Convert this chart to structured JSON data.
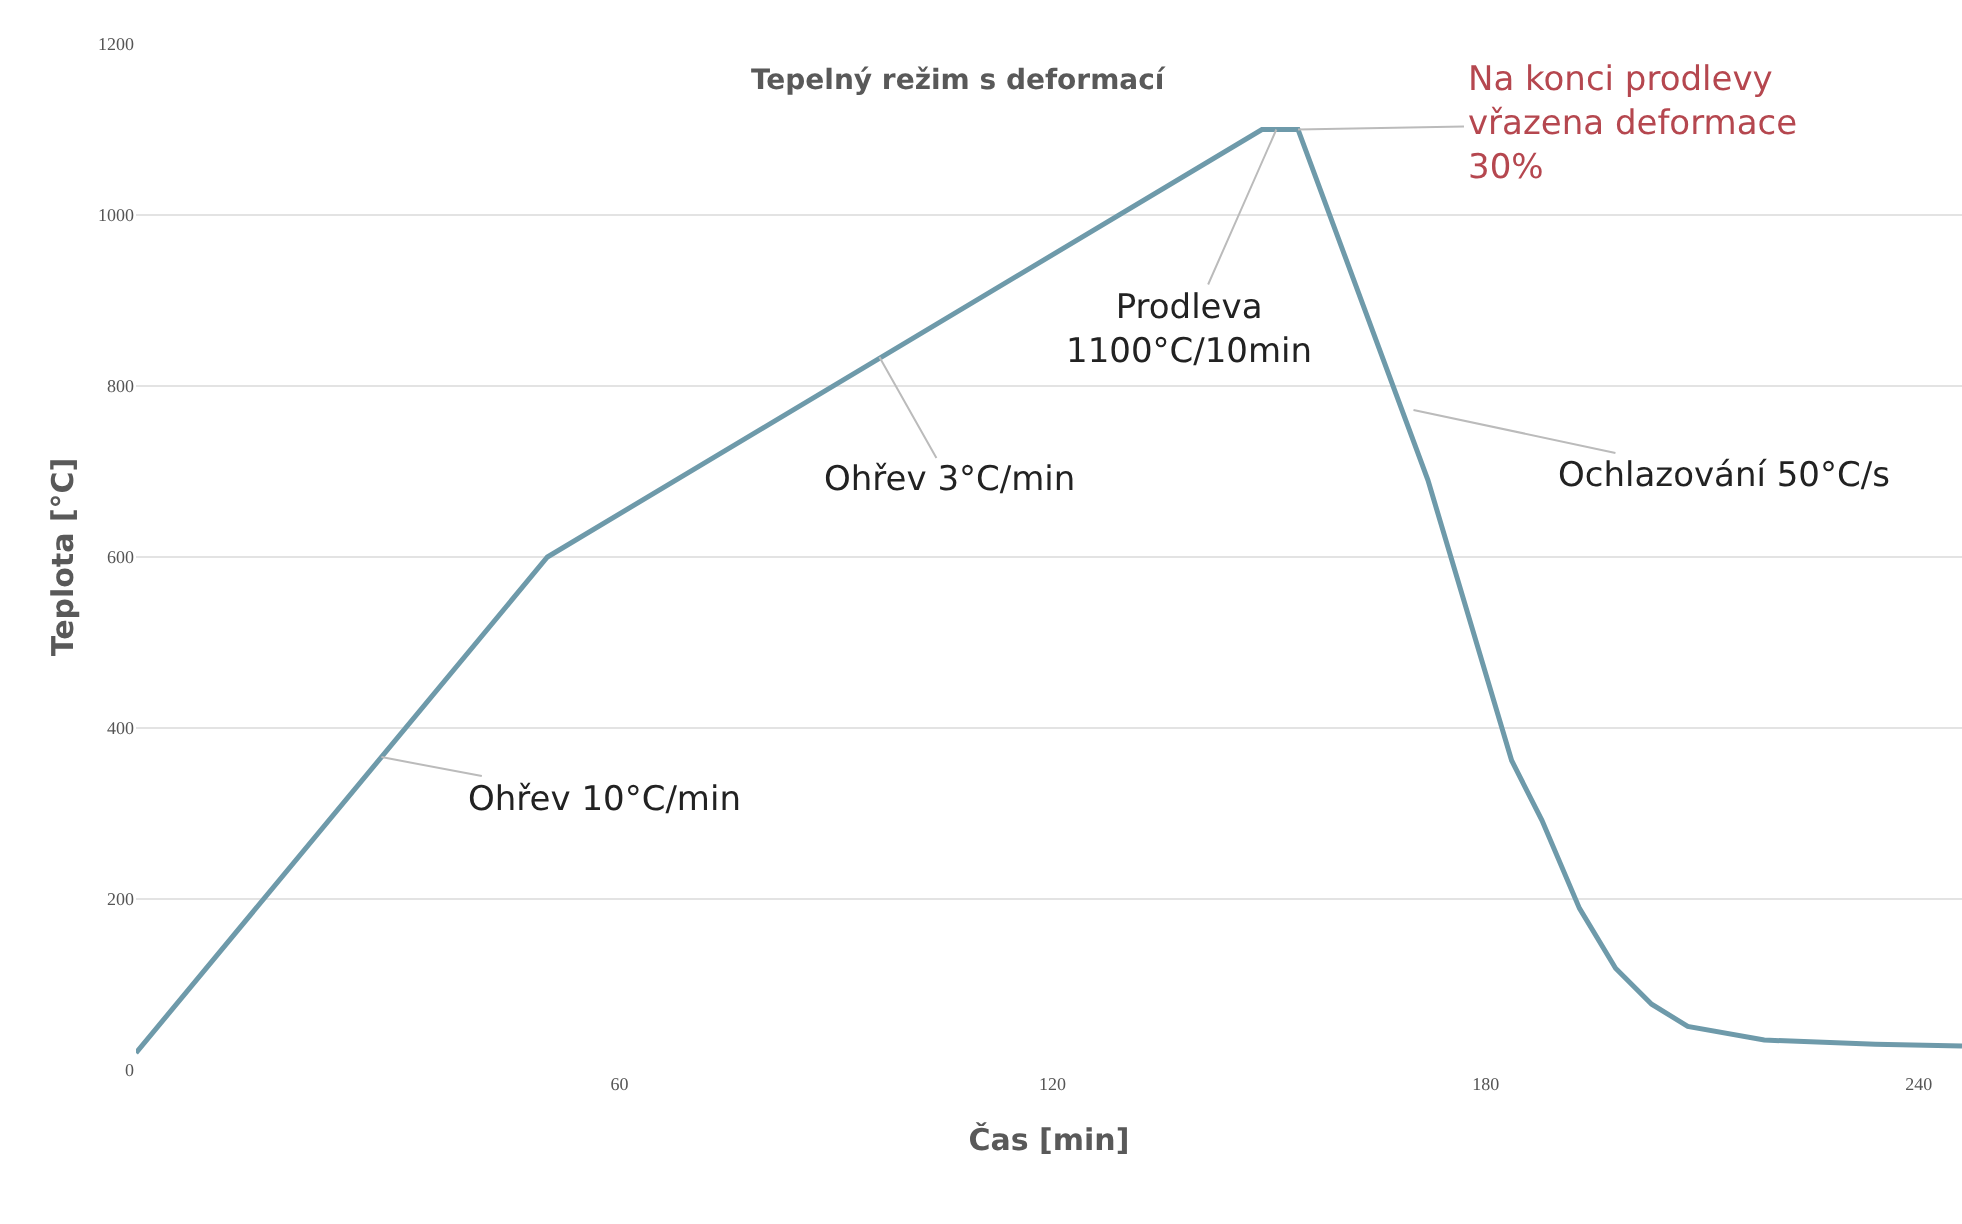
{
  "chart_data": {
    "type": "line",
    "title": "Tepelný režim s deformací",
    "xlabel": "Čas [min]",
    "ylabel": "Teplota [°C]",
    "x": [
      -7,
      50,
      149,
      154,
      172,
      183.6,
      187.8,
      193,
      198,
      203,
      208,
      218.6,
      234,
      246
    ],
    "series": [
      {
        "color": "#6e9aaa",
        "values": [
          20,
          600,
          1100,
          1100,
          690,
          362,
          292,
          189,
          119,
          77,
          51,
          35,
          30,
          28
        ]
      }
    ],
    "xlim": [
      -7,
      246
    ],
    "xticks": [
      60,
      120,
      180,
      240
    ],
    "ylim": [
      0,
      1200
    ],
    "yticks": [
      0,
      200,
      400,
      600,
      800,
      1000,
      1200
    ],
    "grid": "y",
    "marker": "none",
    "line_style": "solid",
    "annotations": [
      {
        "text": "Ohřev 10°C/min",
        "x": 27,
        "y": 366
      },
      {
        "text": "Ohřev 3°C/min",
        "x": 96,
        "y": 834
      },
      {
        "text": "Prodleva\n1100°C/10min",
        "x": 151,
        "y": 1100
      },
      {
        "text": "Na konci prodlevy\nvřazena deformace\n30%",
        "x": 154,
        "y": 1100
      },
      {
        "text": "Ochlazování 50°C/s",
        "x": 170,
        "y": 772
      }
    ]
  }
}
